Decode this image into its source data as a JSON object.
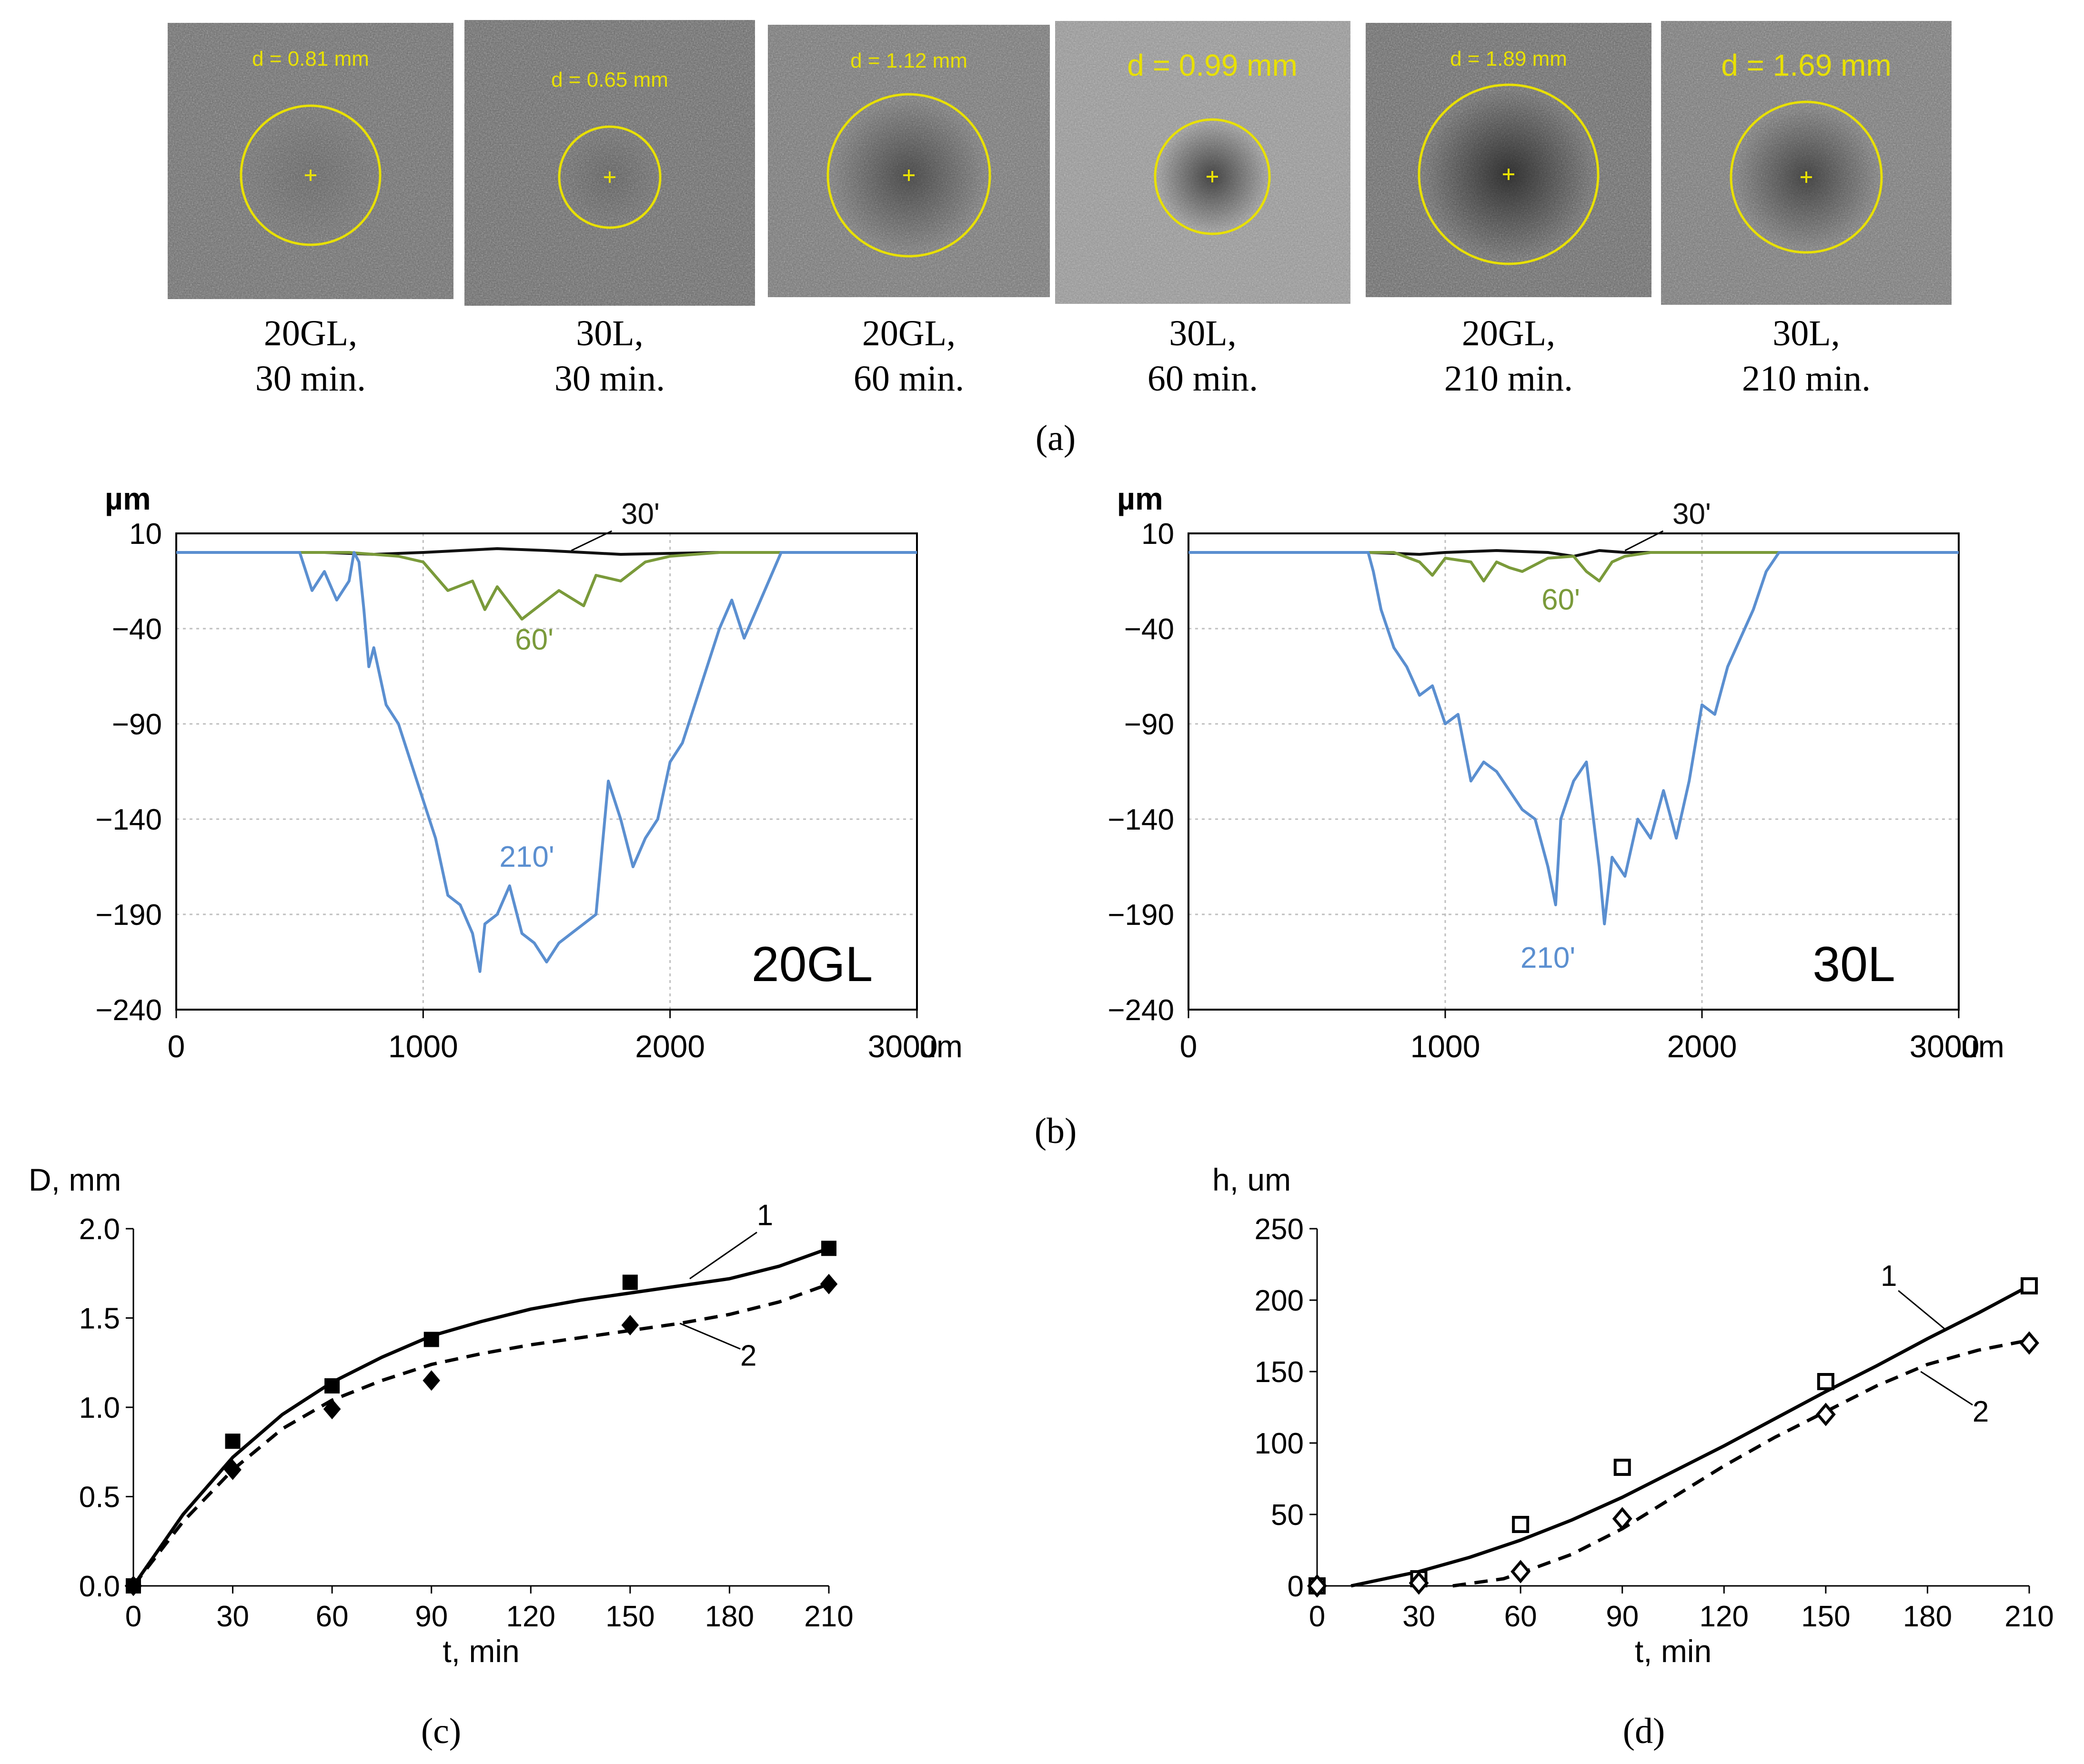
{
  "panel_labels": {
    "a": "(a)",
    "b": "(b)",
    "c": "(c)",
    "d": "(d)"
  },
  "micrographs": [
    {
      "d_label": "d = 0.81 mm",
      "caption_line1": "20GL,",
      "caption_line2": "30 min."
    },
    {
      "d_label": "d = 0.65 mm",
      "caption_line1": "30L,",
      "caption_line2": "30 min."
    },
    {
      "d_label": "d = 1.12 mm",
      "caption_line1": "20GL,",
      "caption_line2": "60 min."
    },
    {
      "d_label": "d = 0.99 mm",
      "caption_line1": "30L,",
      "caption_line2": "60 min."
    },
    {
      "d_label": "d = 1.89 mm",
      "caption_line1": "20GL,",
      "caption_line2": "210 min."
    },
    {
      "d_label": "d = 1.69 mm",
      "caption_line1": "30L,",
      "caption_line2": "210 min."
    }
  ],
  "colors": {
    "profile_30": "#111111",
    "profile_60": "#7a9a3a",
    "profile_210": "#5b8fd0",
    "circle": "#e8e000",
    "grid": "#bfbfbf"
  },
  "chart_data": [
    {
      "type": "line",
      "panel": "b-left",
      "ylabel": "µm",
      "xlabel": "um",
      "material_label": "20GL",
      "xlim": [
        0,
        3000
      ],
      "ylim": [
        -240,
        10
      ],
      "xticks": [
        0,
        1000,
        2000,
        3000
      ],
      "yticks": [
        10,
        -40,
        -90,
        -140,
        -190,
        -240
      ],
      "series": [
        {
          "name": "30'",
          "x": [
            0,
            600,
            800,
            1000,
            1150,
            1300,
            1500,
            1650,
            1800,
            2200,
            3000
          ],
          "y": [
            0,
            0,
            -1,
            0,
            1,
            2,
            1,
            0,
            -1,
            0,
            0
          ]
        },
        {
          "name": "60'",
          "x": [
            0,
            700,
            900,
            1000,
            1100,
            1200,
            1250,
            1300,
            1400,
            1500,
            1550,
            1650,
            1700,
            1800,
            1900,
            2000,
            2200,
            3000
          ],
          "y": [
            0,
            0,
            -2,
            -5,
            -20,
            -15,
            -30,
            -18,
            -35,
            -25,
            -20,
            -28,
            -12,
            -15,
            -5,
            -2,
            0,
            0
          ]
        },
        {
          "name": "210'",
          "x": [
            0,
            500,
            550,
            600,
            650,
            700,
            720,
            740,
            760,
            780,
            800,
            850,
            900,
            950,
            1000,
            1050,
            1100,
            1150,
            1200,
            1230,
            1250,
            1300,
            1350,
            1400,
            1450,
            1500,
            1550,
            1600,
            1650,
            1700,
            1750,
            1800,
            1850,
            1900,
            1950,
            2000,
            2050,
            2100,
            2200,
            2250,
            2300,
            2350,
            2400,
            2450,
            3000
          ],
          "y": [
            0,
            0,
            -20,
            -10,
            -25,
            -15,
            0,
            -5,
            -30,
            -60,
            -50,
            -80,
            -90,
            -110,
            -130,
            -150,
            -180,
            -185,
            -200,
            -220,
            -195,
            -190,
            -175,
            -200,
            -205,
            -215,
            -205,
            -200,
            -195,
            -190,
            -120,
            -140,
            -165,
            -150,
            -140,
            -110,
            -100,
            -80,
            -40,
            -25,
            -45,
            -30,
            -15,
            0,
            0
          ]
        }
      ]
    },
    {
      "type": "line",
      "panel": "b-right",
      "ylabel": "µm",
      "xlabel": "um",
      "material_label": "30L",
      "xlim": [
        0,
        3000
      ],
      "ylim": [
        -240,
        10
      ],
      "xticks": [
        0,
        1000,
        2000,
        3000
      ],
      "yticks": [
        10,
        -40,
        -90,
        -140,
        -190,
        -240
      ],
      "series": [
        {
          "name": "30'",
          "x": [
            0,
            700,
            900,
            1000,
            1200,
            1400,
            1500,
            1600,
            1700,
            2000,
            3000
          ],
          "y": [
            0,
            0,
            -1,
            0,
            1,
            0,
            -2,
            1,
            0,
            0,
            0
          ]
        },
        {
          "name": "60'",
          "x": [
            0,
            800,
            900,
            950,
            1000,
            1100,
            1150,
            1200,
            1250,
            1300,
            1400,
            1500,
            1550,
            1600,
            1650,
            1700,
            1800,
            3000
          ],
          "y": [
            0,
            0,
            -5,
            -12,
            -3,
            -5,
            -15,
            -5,
            -8,
            -10,
            -3,
            -2,
            -10,
            -15,
            -5,
            -2,
            0,
            0
          ]
        },
        {
          "name": "210'",
          "x": [
            0,
            700,
            720,
            750,
            800,
            850,
            900,
            950,
            1000,
            1050,
            1100,
            1150,
            1200,
            1250,
            1300,
            1350,
            1400,
            1430,
            1450,
            1500,
            1550,
            1600,
            1620,
            1650,
            1700,
            1750,
            1800,
            1850,
            1900,
            1950,
            2000,
            2050,
            2100,
            2150,
            2200,
            2250,
            2300,
            3000
          ],
          "y": [
            0,
            0,
            -10,
            -30,
            -50,
            -60,
            -75,
            -70,
            -90,
            -85,
            -120,
            -110,
            -115,
            -125,
            -135,
            -140,
            -165,
            -185,
            -140,
            -120,
            -110,
            -165,
            -195,
            -160,
            -170,
            -140,
            -150,
            -125,
            -150,
            -120,
            -80,
            -85,
            -60,
            -45,
            -30,
            -10,
            0,
            0
          ]
        }
      ]
    },
    {
      "type": "line",
      "panel": "c",
      "ylabel": "D, mm",
      "xlabel": "t, min",
      "xlim": [
        0,
        210
      ],
      "ylim": [
        0,
        2.0
      ],
      "xticks": [
        0,
        30,
        60,
        90,
        120,
        150,
        180,
        210
      ],
      "yticks": [
        0.0,
        0.5,
        1.0,
        1.5,
        2.0
      ],
      "ytick_labels": [
        "0.0",
        "0.5",
        "1.0",
        "1.5",
        "2.0"
      ],
      "series": [
        {
          "name": "1",
          "marker": "square",
          "points_x": [
            0,
            30,
            60,
            90,
            150,
            210
          ],
          "points_y": [
            0,
            0.81,
            1.12,
            1.38,
            1.7,
            1.89
          ],
          "curve_x": [
            0,
            15,
            30,
            45,
            60,
            75,
            90,
            105,
            120,
            135,
            150,
            165,
            180,
            195,
            210
          ],
          "curve_y": [
            0,
            0.4,
            0.72,
            0.96,
            1.14,
            1.28,
            1.4,
            1.48,
            1.55,
            1.6,
            1.64,
            1.68,
            1.72,
            1.79,
            1.89
          ]
        },
        {
          "name": "2",
          "marker": "diamond",
          "points_x": [
            0,
            30,
            60,
            90,
            150,
            210
          ],
          "points_y": [
            0,
            0.65,
            0.99,
            1.15,
            1.46,
            1.69
          ],
          "curve_x": [
            0,
            15,
            30,
            45,
            60,
            75,
            90,
            105,
            120,
            135,
            150,
            165,
            180,
            195,
            210
          ],
          "curve_y": [
            0,
            0.36,
            0.65,
            0.88,
            1.04,
            1.15,
            1.24,
            1.3,
            1.35,
            1.39,
            1.43,
            1.47,
            1.52,
            1.59,
            1.69
          ]
        }
      ]
    },
    {
      "type": "line",
      "panel": "d",
      "ylabel": "h, um",
      "xlabel": "t, min",
      "xlim": [
        0,
        210
      ],
      "ylim": [
        0,
        250
      ],
      "xticks": [
        0,
        30,
        60,
        90,
        120,
        150,
        180,
        210
      ],
      "yticks": [
        0,
        50,
        100,
        150,
        200,
        250
      ],
      "series": [
        {
          "name": "1",
          "marker": "open-square",
          "points_x": [
            0,
            30,
            60,
            90,
            150,
            210
          ],
          "points_y": [
            0,
            5,
            43,
            83,
            143,
            210
          ],
          "curve_x": [
            10,
            30,
            45,
            60,
            75,
            90,
            105,
            120,
            135,
            150,
            165,
            180,
            195,
            210
          ],
          "curve_y": [
            0,
            10,
            20,
            32,
            46,
            62,
            80,
            98,
            117,
            136,
            154,
            173,
            191,
            210
          ]
        },
        {
          "name": "2",
          "marker": "open-diamond",
          "points_x": [
            0,
            30,
            60,
            90,
            150,
            210
          ],
          "points_y": [
            0,
            2,
            10,
            47,
            120,
            170
          ],
          "curve_x": [
            40,
            55,
            60,
            75,
            90,
            105,
            120,
            135,
            150,
            165,
            180,
            195,
            210
          ],
          "curve_y": [
            0,
            5,
            9,
            22,
            40,
            62,
            84,
            104,
            122,
            140,
            155,
            165,
            172
          ]
        }
      ]
    }
  ]
}
